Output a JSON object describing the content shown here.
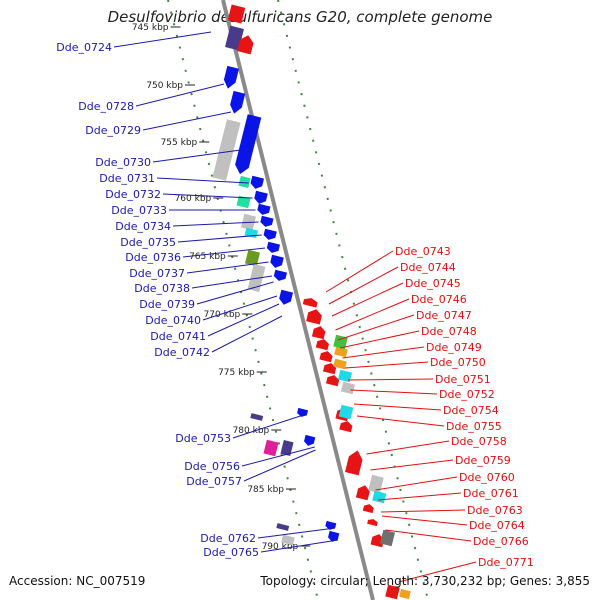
{
  "title": "Desulfovibrio desulfuricans G20, complete genome",
  "footer": {
    "accession": "Accession: NC_007519",
    "summary": "Topology: circular; Length: 3,730,232 bp; Genes: 3,855"
  },
  "colors": {
    "backbone": "#8a8a8a",
    "forward_label": "#1a1aaa",
    "reverse_label": "#e01010",
    "tick": "#3a8a3a",
    "blue_gene": "#0a14e6",
    "red_gene": "#e61414",
    "gray_feature": "#c0c0c0",
    "teal_feature": "#20e0a0",
    "cyan_feature": "#20d8e8",
    "olive_feature": "#6a9a20",
    "purple_feature": "#4a3a8a",
    "magenta_feature": "#e0209a",
    "orange_feature": "#f0a020",
    "green_feature": "#40c040",
    "dark_gray_feature": "#707070"
  },
  "scale_labels": [
    "745 kbp",
    "750 kbp",
    "755 kbp",
    "760 kbp",
    "765 kbp",
    "770 kbp",
    "775 kbp",
    "780 kbp",
    "785 kbp",
    "790 kbp"
  ],
  "forward_genes": [
    "Dde_0724",
    "Dde_0728",
    "Dde_0729",
    "Dde_0730",
    "Dde_0731",
    "Dde_0732",
    "Dde_0733",
    "Dde_0734",
    "Dde_0735",
    "Dde_0736",
    "Dde_0737",
    "Dde_0738",
    "Dde_0739",
    "Dde_0740",
    "Dde_0741",
    "Dde_0742",
    "Dde_0753",
    "Dde_0756",
    "Dde_0757",
    "Dde_0762",
    "Dde_0765"
  ],
  "reverse_genes": [
    "Dde_0743",
    "Dde_0744",
    "Dde_0745",
    "Dde_0746",
    "Dde_0747",
    "Dde_0748",
    "Dde_0749",
    "Dde_0750",
    "Dde_0751",
    "Dde_0752",
    "Dde_0754",
    "Dde_0755",
    "Dde_0758",
    "Dde_0759",
    "Dde_0760",
    "Dde_0761",
    "Dde_0763",
    "Dde_0764",
    "Dde_0766",
    "Dde_0771"
  ]
}
